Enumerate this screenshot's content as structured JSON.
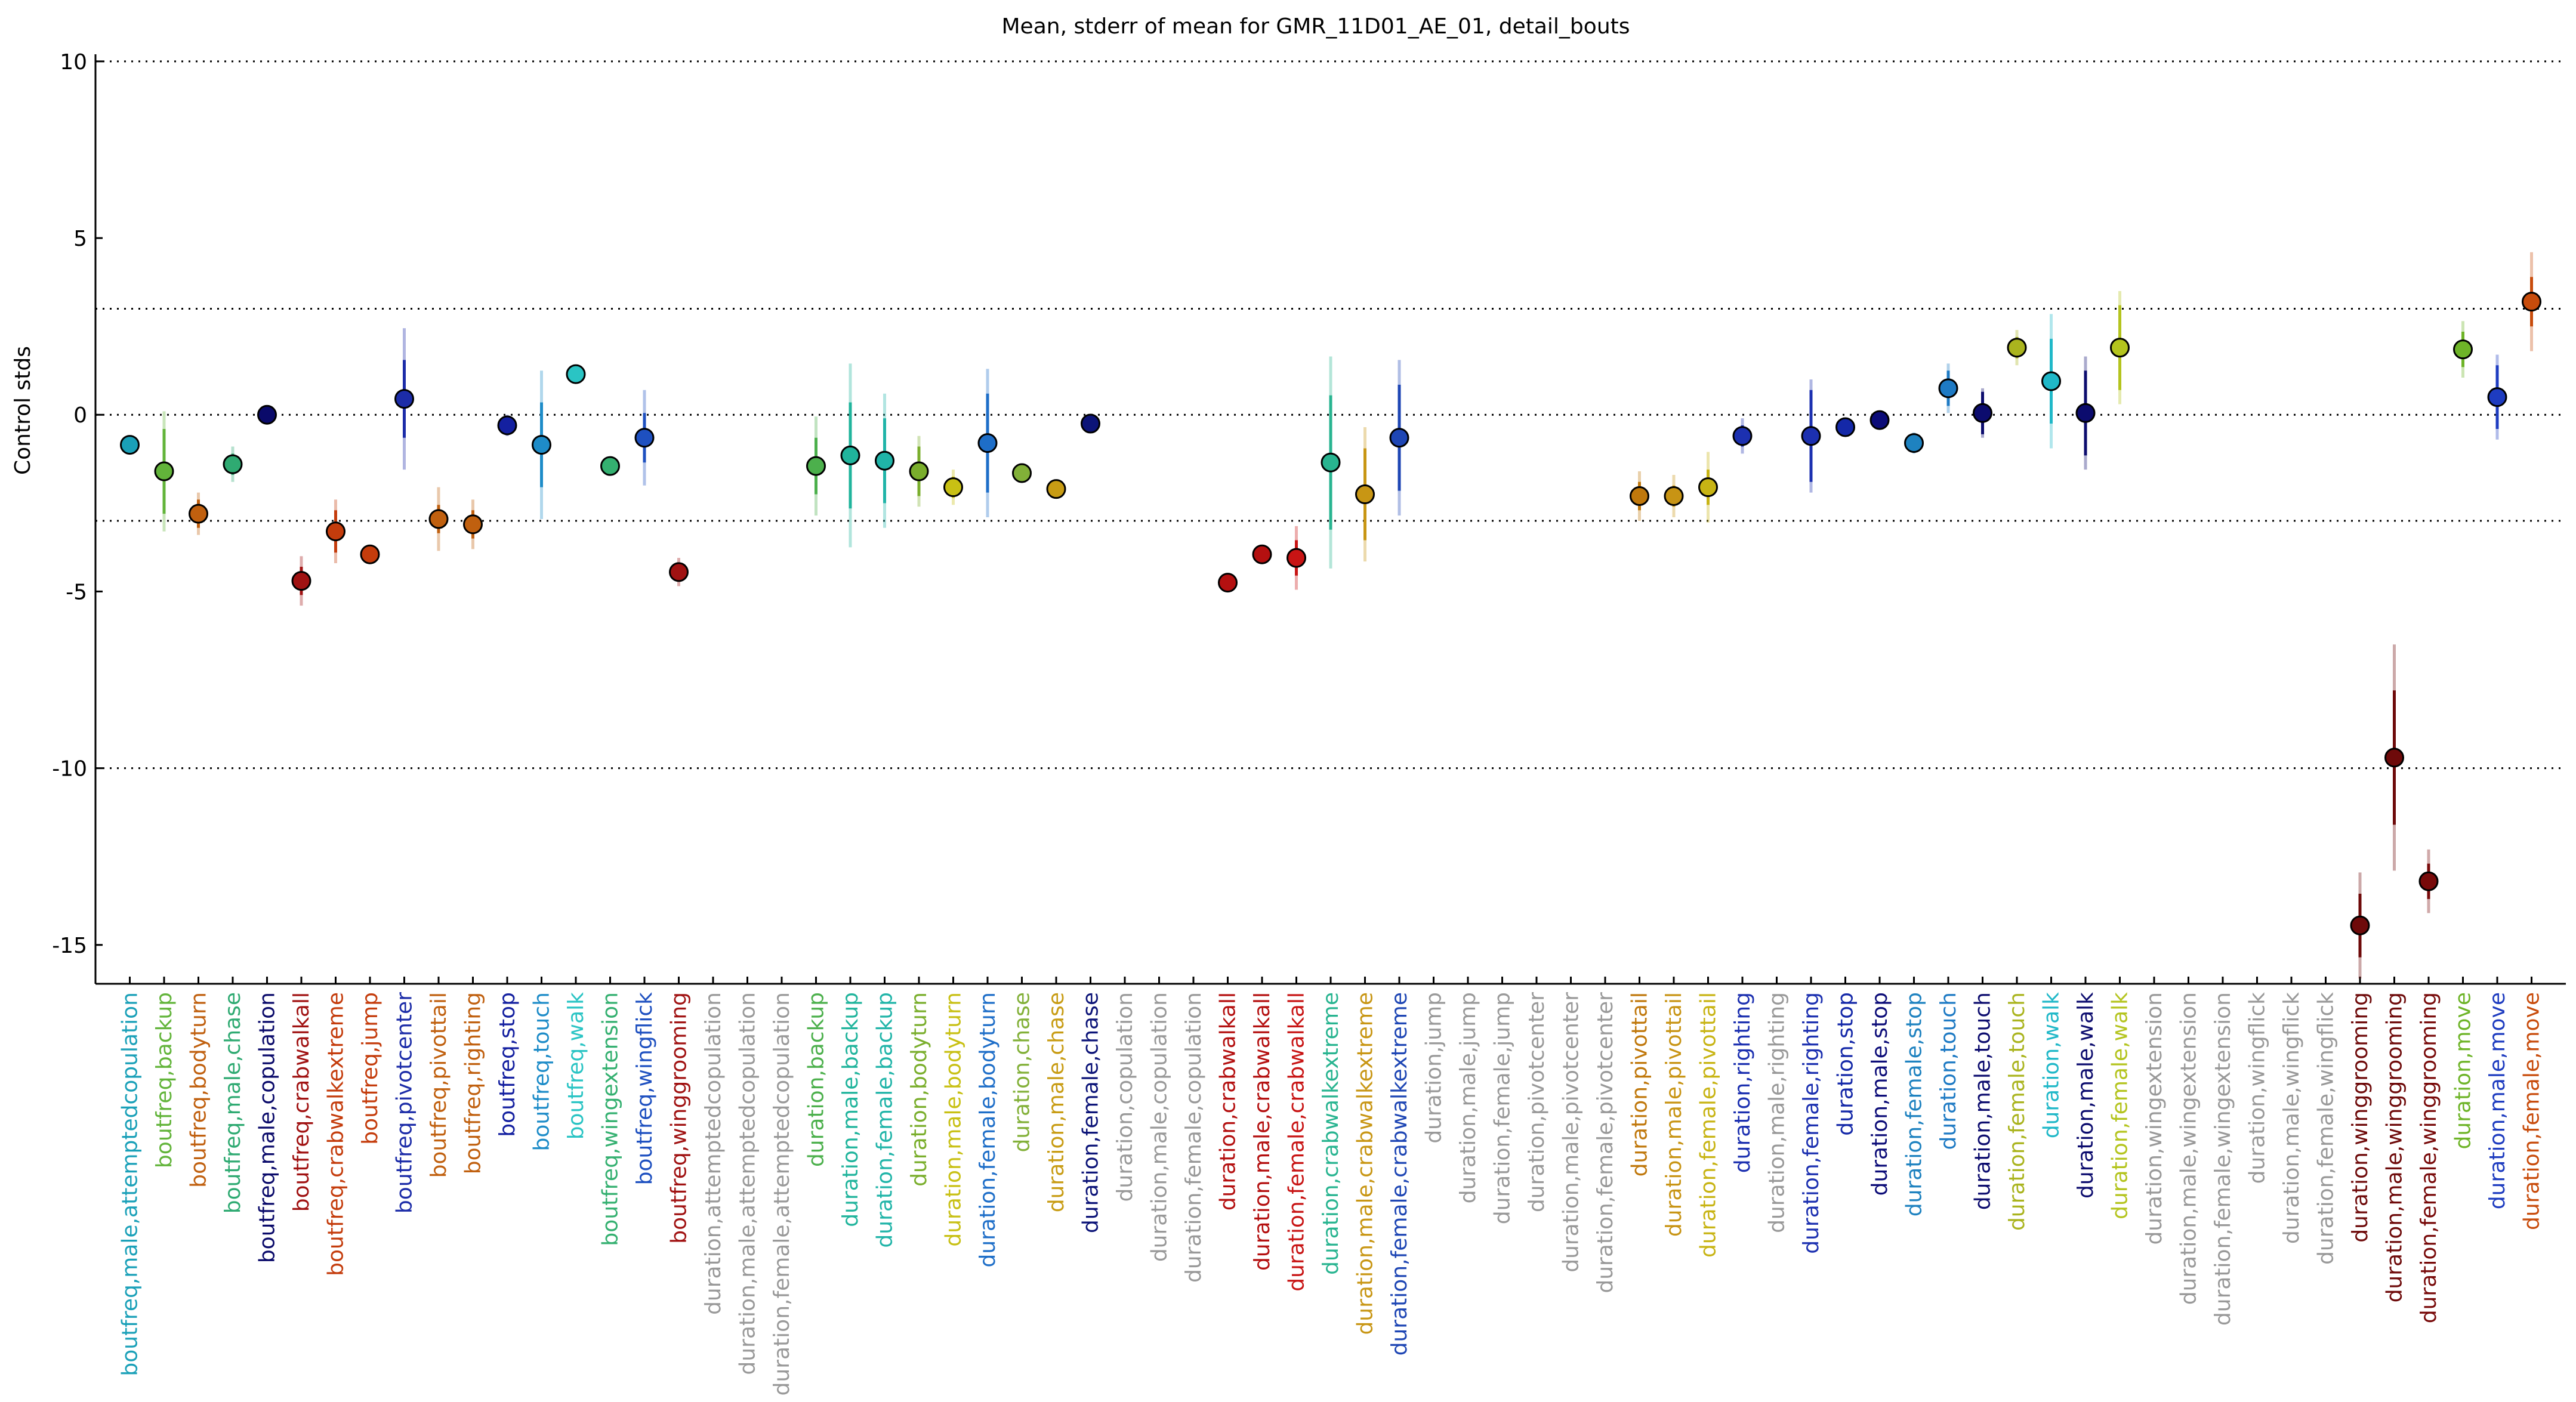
{
  "chart_data": {
    "type": "errorbar",
    "title": "Mean, stderr of mean for GMR_11D01_AE_01, detail_bouts",
    "ylabel": "Control stds",
    "categories": [
      "boutfreq,male,attemptedcopulation",
      "boutfreq,backup",
      "boutfreq,bodyturn",
      "boutfreq,male,chase",
      "boutfreq,male,copulation",
      "boutfreq,crabwalkall",
      "boutfreq,crabwalkextreme",
      "boutfreq,jump",
      "boutfreq,pivotcenter",
      "boutfreq,pivottail",
      "boutfreq,righting",
      "boutfreq,stop",
      "boutfreq,touch",
      "boutfreq,walk",
      "boutfreq,wingextension",
      "boutfreq,wingflick",
      "boutfreq,winggrooming",
      "duration,attemptedcopulation",
      "duration,male,attemptedcopulation",
      "duration,female,attemptedcopulation",
      "duration,backup",
      "duration,male,backup",
      "duration,female,backup",
      "duration,bodyturn",
      "duration,male,bodyturn",
      "duration,female,bodyturn",
      "duration,chase",
      "duration,male,chase",
      "duration,female,chase",
      "duration,copulation",
      "duration,male,copulation",
      "duration,female,copulation",
      "duration,crabwalkall",
      "duration,male,crabwalkall",
      "duration,female,crabwalkall",
      "duration,crabwalkextreme",
      "duration,male,crabwalkextreme",
      "duration,female,crabwalkextreme",
      "duration,jump",
      "duration,male,jump",
      "duration,female,jump",
      "duration,pivotcenter",
      "duration,male,pivotcenter",
      "duration,female,pivotcenter",
      "duration,pivottail",
      "duration,male,pivottail",
      "duration,female,pivottail",
      "duration,righting",
      "duration,male,righting",
      "duration,female,righting",
      "duration,stop",
      "duration,male,stop",
      "duration,female,stop",
      "duration,touch",
      "duration,male,touch",
      "duration,female,touch",
      "duration,walk",
      "duration,male,walk",
      "duration,female,walk",
      "duration,wingextension",
      "duration,male,wingextension",
      "duration,female,wingextension",
      "duration,wingflick",
      "duration,male,wingflick",
      "duration,female,wingflick",
      "duration,winggrooming",
      "duration,male,winggrooming",
      "duration,female,winggrooming",
      "duration,move",
      "duration,male,move",
      "duration,female,move"
    ],
    "values": [
      -0.85,
      -1.6,
      -2.8,
      -1.4,
      0.0,
      -4.7,
      -3.3,
      -3.95,
      0.45,
      -2.95,
      -3.1,
      -0.3,
      -0.85,
      1.15,
      -1.45,
      -0.65,
      -4.45,
      null,
      null,
      null,
      -1.45,
      -1.15,
      -1.3,
      -1.6,
      -2.05,
      -0.8,
      -1.65,
      -2.1,
      -0.25,
      null,
      null,
      null,
      -4.75,
      -3.95,
      -4.05,
      -1.35,
      -2.25,
      -0.65,
      null,
      null,
      null,
      null,
      null,
      null,
      -2.3,
      -2.3,
      -2.05,
      -0.6,
      null,
      -0.6,
      -0.35,
      -0.15,
      -0.8,
      0.75,
      0.05,
      1.9,
      0.95,
      0.05,
      1.9,
      null,
      null,
      null,
      null,
      null,
      null,
      -14.45,
      -9.7,
      -13.2,
      1.85,
      0.5,
      3.2
    ],
    "errors": [
      0.1,
      1.2,
      0.4,
      0.3,
      0.05,
      0.4,
      0.6,
      0.1,
      1.1,
      0.4,
      0.4,
      0.2,
      1.2,
      0.1,
      0.1,
      0.7,
      0.2,
      null,
      null,
      null,
      0.8,
      1.5,
      1.2,
      0.7,
      0.3,
      1.4,
      0.1,
      0.1,
      0.05,
      null,
      null,
      null,
      0.1,
      0.1,
      0.5,
      1.9,
      1.3,
      1.5,
      null,
      null,
      null,
      null,
      null,
      null,
      0.4,
      0.3,
      0.5,
      0.3,
      null,
      1.3,
      0.1,
      0.1,
      0.2,
      0.5,
      0.6,
      0.3,
      1.2,
      1.2,
      1.2,
      null,
      null,
      null,
      null,
      null,
      null,
      0.9,
      1.9,
      0.5,
      0.5,
      0.9,
      0.7
    ],
    "errors_outer": [
      0.15,
      1.7,
      0.6,
      0.5,
      0.1,
      0.7,
      0.9,
      0.15,
      2.0,
      0.9,
      0.7,
      0.3,
      2.1,
      0.15,
      0.15,
      1.35,
      0.4,
      null,
      null,
      null,
      1.4,
      2.6,
      1.9,
      1.0,
      0.5,
      2.1,
      0.15,
      0.15,
      0.1,
      null,
      null,
      null,
      0.15,
      0.15,
      0.9,
      3.0,
      1.9,
      2.2,
      null,
      null,
      null,
      null,
      null,
      null,
      0.7,
      0.6,
      1.0,
      0.5,
      null,
      1.6,
      0.15,
      0.15,
      0.3,
      0.7,
      0.7,
      0.5,
      1.9,
      1.6,
      1.6,
      null,
      null,
      null,
      null,
      null,
      null,
      1.5,
      3.2,
      0.9,
      0.8,
      1.2,
      1.4
    ],
    "colors": [
      "#1aa0b8",
      "#62b43a",
      "#c0600f",
      "#2faa72",
      "#0a0a6a",
      "#a01212",
      "#c43c0c",
      "#c43c0c",
      "#1c2ca8",
      "#c0600f",
      "#c0600f",
      "#1420a0",
      "#1e8cc8",
      "#2ac4c4",
      "#34b070",
      "#1e50c0",
      "#a01212",
      "#999999",
      "#999999",
      "#999999",
      "#4cb04c",
      "#20b49c",
      "#20b4a8",
      "#7aae2c",
      "#c8c014",
      "#1e6ec8",
      "#82b038",
      "#c89c14",
      "#0c1478",
      "#999999",
      "#999999",
      "#999999",
      "#b41010",
      "#b41010",
      "#c81414",
      "#28b490",
      "#c89614",
      "#1e46b4",
      "#999999",
      "#999999",
      "#999999",
      "#999999",
      "#999999",
      "#999999",
      "#c0780c",
      "#c89414",
      "#c8b414",
      "#1c30b0",
      "#999999",
      "#1c30b0",
      "#1428a8",
      "#0c0c78",
      "#1e82c0",
      "#1e7ac4",
      "#0c0c6e",
      "#aab41e",
      "#20b8c8",
      "#0c0c6e",
      "#b4c41e",
      "#999999",
      "#999999",
      "#999999",
      "#999999",
      "#999999",
      "#999999",
      "#6e0a0a",
      "#6e0a0a",
      "#780a0a",
      "#6eb428",
      "#1e3cc0",
      "#c84c0c"
    ],
    "ylim": [
      -16.1,
      10.2
    ],
    "yticks": [
      -15,
      -10,
      -5,
      0,
      5,
      10
    ],
    "hlines": [
      -10,
      -3,
      0,
      3,
      10
    ]
  }
}
